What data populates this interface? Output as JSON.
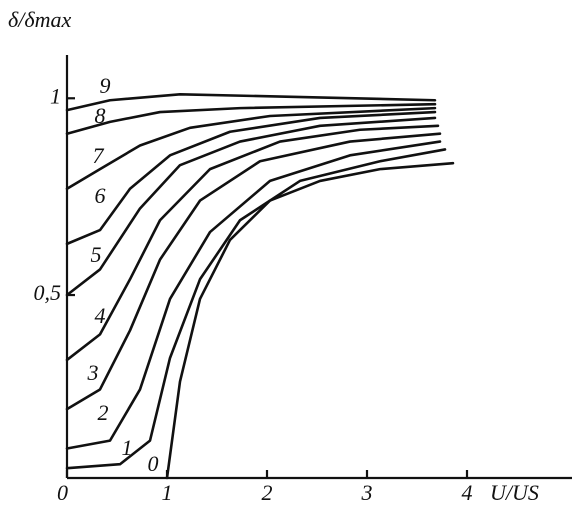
{
  "chart_data": {
    "type": "line",
    "y_label": "δ/δmax",
    "x_label": "U/US",
    "color": "#111111",
    "xlim": [
      0,
      5.05
    ],
    "ylim": [
      0.035,
      1.11
    ],
    "xticks": [
      0,
      1,
      2,
      3,
      4
    ],
    "yticks": [
      {
        "value": 0.5,
        "label": "0,5"
      },
      1
    ],
    "series": [
      {
        "name": "0",
        "x": [
          1.0,
          1.13,
          1.33,
          1.63,
          2.03,
          2.53,
          3.13,
          3.86
        ],
        "values": [
          0.035,
          0.28,
          0.49,
          0.64,
          0.74,
          0.79,
          0.82,
          0.835
        ]
      },
      {
        "name": "1",
        "x": [
          0,
          0.53,
          0.83,
          1.03,
          1.33,
          1.73,
          2.33,
          3.13,
          3.78
        ],
        "values": [
          0.06,
          0.07,
          0.13,
          0.34,
          0.54,
          0.69,
          0.79,
          0.84,
          0.87
        ]
      },
      {
        "name": "2",
        "x": [
          0,
          0.43,
          0.73,
          1.03,
          1.43,
          2.03,
          2.83,
          3.73
        ],
        "values": [
          0.11,
          0.13,
          0.26,
          0.49,
          0.66,
          0.79,
          0.855,
          0.89
        ]
      },
      {
        "name": "3",
        "x": [
          0,
          0.33,
          0.63,
          0.93,
          1.33,
          1.93,
          2.83,
          3.73
        ],
        "values": [
          0.21,
          0.26,
          0.41,
          0.59,
          0.74,
          0.84,
          0.89,
          0.91
        ]
      },
      {
        "name": "4",
        "x": [
          0,
          0.33,
          0.63,
          0.93,
          1.43,
          2.13,
          2.93,
          3.71
        ],
        "values": [
          0.335,
          0.4,
          0.54,
          0.69,
          0.82,
          0.89,
          0.92,
          0.93
        ]
      },
      {
        "name": "5",
        "x": [
          0,
          0.33,
          0.73,
          1.13,
          1.73,
          2.53,
          3.68
        ],
        "values": [
          0.5,
          0.565,
          0.72,
          0.83,
          0.89,
          0.93,
          0.95
        ]
      },
      {
        "name": "6",
        "x": [
          0,
          0.33,
          0.63,
          1.03,
          1.63,
          2.53,
          3.68
        ],
        "values": [
          0.63,
          0.665,
          0.77,
          0.855,
          0.915,
          0.95,
          0.965
        ]
      },
      {
        "name": "7",
        "x": [
          0,
          0.33,
          0.73,
          1.23,
          2.03,
          3.68
        ],
        "values": [
          0.77,
          0.82,
          0.88,
          0.925,
          0.955,
          0.975
        ]
      },
      {
        "name": "8",
        "x": [
          0,
          0.43,
          0.93,
          1.73,
          3.68
        ],
        "values": [
          0.91,
          0.94,
          0.965,
          0.975,
          0.985
        ]
      },
      {
        "name": "9",
        "x": [
          0,
          0.43,
          1.13,
          2.03,
          3.68
        ],
        "values": [
          0.97,
          0.995,
          1.01,
          1.005,
          0.995
        ]
      }
    ]
  }
}
